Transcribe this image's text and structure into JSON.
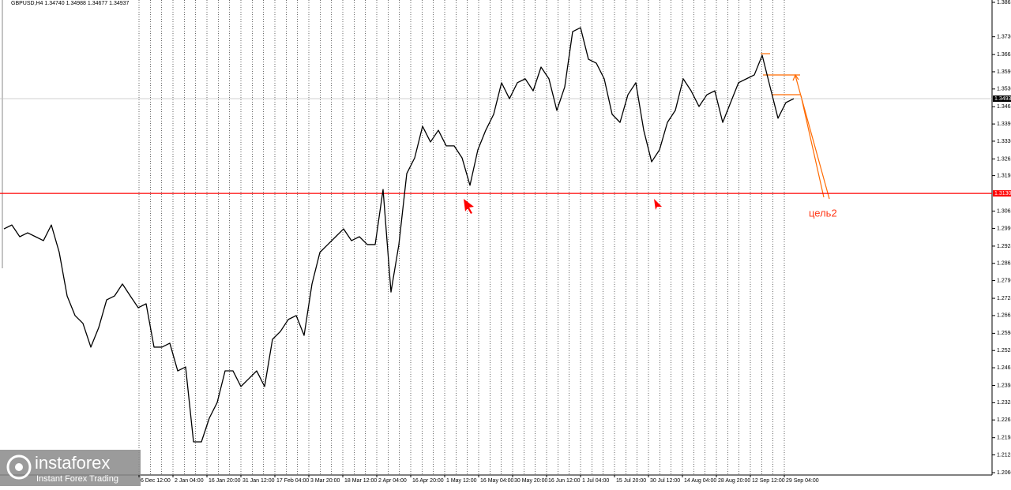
{
  "chart_data": {
    "type": "line",
    "title": "GBPUSD,H4 1.34740 1.34988 1.34677 1.34937",
    "series": [
      {
        "color": "#000000",
        "values": [
          1.2994,
          1.3009,
          1.2964,
          1.2979,
          1.2964,
          1.2949,
          1.3009,
          1.2904,
          1.2737,
          1.2662,
          1.2632,
          1.2541,
          1.2616,
          1.2722,
          1.2737,
          1.2783,
          1.2737,
          1.2692,
          1.2707,
          1.2541,
          1.2541,
          1.2556,
          1.245,
          1.2465,
          1.2178,
          1.2178,
          1.2269,
          1.2329,
          1.245,
          1.245,
          1.239,
          1.242,
          1.245,
          1.239,
          1.2571,
          1.2601,
          1.2647,
          1.2662,
          1.2586,
          1.2783,
          1.2904,
          1.2934,
          1.2964,
          1.2994,
          1.2949,
          1.2964,
          1.2934,
          1.2934,
          1.3145,
          1.2752,
          1.2934,
          1.3206,
          1.3266,
          1.3387,
          1.3327,
          1.3372,
          1.3312,
          1.3312,
          1.3266,
          1.3161,
          1.3297,
          1.3372,
          1.3433,
          1.3554,
          1.3493,
          1.3554,
          1.3569,
          1.3523,
          1.3614,
          1.3569,
          1.3448,
          1.3538,
          1.375,
          1.3765,
          1.3644,
          1.3629,
          1.3569,
          1.3433,
          1.3402,
          1.3508,
          1.3554,
          1.3372,
          1.3251,
          1.3297,
          1.3402,
          1.3448,
          1.3569,
          1.3523,
          1.3463,
          1.3508,
          1.3523,
          1.3402,
          1.3478,
          1.3554,
          1.3569,
          1.3584,
          1.3659,
          1.3538,
          1.3418,
          1.3478,
          1.3493
        ]
      }
    ],
    "xlim": [
      -0.5,
      125.1
    ],
    "xticks": [
      {
        "value": 17.1,
        "label": "6 Dec 12:00"
      },
      {
        "value": 21.4,
        "label": "2 Jan 04:00"
      },
      {
        "value": 25.7,
        "label": "16 Jan 20:00"
      },
      {
        "value": 30,
        "label": "31 Jan 12:00"
      },
      {
        "value": 34.3,
        "label": "17 Feb 04:00"
      },
      {
        "value": 38.6,
        "label": "3 Mar 20:00"
      },
      {
        "value": 42.9,
        "label": "18 Mar 12:00"
      },
      {
        "value": 47.2,
        "label": "2 Apr 04:00"
      },
      {
        "value": 51.5,
        "label": "16 Apr 20:00"
      },
      {
        "value": 55.8,
        "label": "1 May 12:00"
      },
      {
        "value": 60.1,
        "label": "16 May 04:00"
      },
      {
        "value": 64.4,
        "label": "30 May 20:00"
      },
      {
        "value": 68.7,
        "label": "16 Jun 12:00"
      },
      {
        "value": 73,
        "label": "1 Jul 04:00"
      },
      {
        "value": 77.3,
        "label": "15 Jul 20:00"
      },
      {
        "value": 81.6,
        "label": "30 Jul 12:00"
      },
      {
        "value": 85.9,
        "label": "14 Aug 04:00"
      },
      {
        "value": 90.2,
        "label": "28 Aug 20:00"
      },
      {
        "value": 94.5,
        "label": "12 Sep 12:00"
      },
      {
        "value": 98.8,
        "label": "29 Sep 04:00"
      }
    ],
    "ylim": [
      1.2051,
      1.3871
    ],
    "yticks": [
      1.3862,
      {
        "value": 1.373,
        "label": "1.3730"
      },
      1.3662,
      1.3596,
      {
        "value": 1.353,
        "label": "1.3530"
      },
      1.3462,
      1.3396,
      {
        "value": 1.333,
        "label": "1.3330"
      },
      1.3262,
      1.3198,
      1.3062,
      1.2996,
      1.2928,
      1.2862,
      1.2796,
      1.2728,
      1.2662,
      1.2594,
      1.2528,
      1.2462,
      1.2394,
      1.2328,
      1.2262,
      1.2194,
      1.2128,
      {
        "value": 1.206,
        "label": "1.2060"
      }
    ],
    "grid": true,
    "levels": [
      {
        "value": 1.313,
        "label": "1.3130",
        "color": "#ff0000"
      },
      {
        "value": 1.3493,
        "color": "#c0c0c0"
      }
    ],
    "annotation": "цель2",
    "brand": "instaforex",
    "tagline": "Instant Forex Trading"
  }
}
